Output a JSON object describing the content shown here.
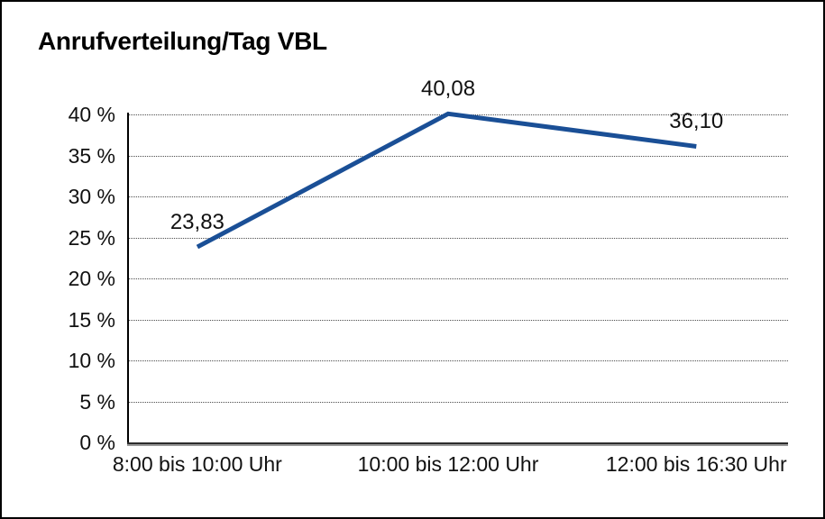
{
  "window": {
    "background": "#ffffff",
    "border_color": "#000000"
  },
  "chart_data": {
    "type": "line",
    "title": "Anrufverteilung/Tag VBL",
    "categories": [
      "8:00 bis 10:00 Uhr",
      "10:00 bis 12:00 Uhr",
      "12:00 bis 16:30 Uhr"
    ],
    "values": [
      23.83,
      40.08,
      36.1
    ],
    "point_labels": [
      "23,83",
      "40,08",
      "36,10"
    ],
    "ylim": [
      0,
      40
    ],
    "ytick_step": 5,
    "yticks": [
      {
        "value": 0,
        "label": "0 %"
      },
      {
        "value": 5,
        "label": "5 %"
      },
      {
        "value": 10,
        "label": "10 %"
      },
      {
        "value": 15,
        "label": "15 %"
      },
      {
        "value": 20,
        "label": "20 %"
      },
      {
        "value": 25,
        "label": "25 %"
      },
      {
        "value": 30,
        "label": "30 %"
      },
      {
        "value": 35,
        "label": "35 %"
      },
      {
        "value": 40,
        "label": "40 %"
      }
    ],
    "xlabel": "",
    "ylabel": "",
    "legend": "none",
    "grid": "horizontal-dotted",
    "line_color": "#1a4f96",
    "axis_color": "#000000",
    "grid_color": "#4d4d4d",
    "text_color": "#111111"
  }
}
